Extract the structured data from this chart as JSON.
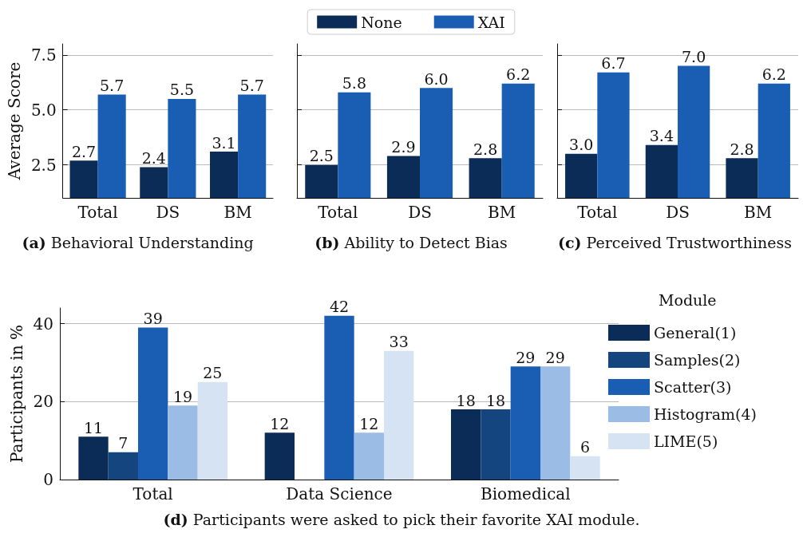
{
  "chart_data": [
    {
      "type": "bar",
      "title": "(a) Behavioral Understanding",
      "ylabel": "Average Score",
      "categories": [
        "Total",
        "DS",
        "BM"
      ],
      "series": [
        {
          "color": "#0b2c56",
          "values": [
            2.7,
            2.4,
            3.1
          ]
        },
        {
          "color": "#1a5eb4",
          "values": [
            5.7,
            5.5,
            5.7
          ]
        }
      ],
      "ylim": [
        1,
        8
      ],
      "yticks": [
        {
          "value": 2.5,
          "label": "2.5"
        },
        {
          "value": 5,
          "label": "5.0"
        },
        {
          "value": 7.5,
          "label": "7.5"
        }
      ],
      "grid": "y",
      "data_labels": true
    },
    {
      "type": "bar",
      "title": "(b) Ability to Detect Bias",
      "categories": [
        "Total",
        "DS",
        "BM"
      ],
      "series": [
        {
          "name": "None",
          "color": "#0b2c56",
          "values": [
            2.5,
            2.9,
            2.8
          ],
          "value_labels": [
            "2.5",
            "2.9",
            "2.8"
          ]
        },
        {
          "name": "XAI",
          "color": "#1a5eb4",
          "values": [
            5.8,
            6.0,
            6.2
          ],
          "value_labels": [
            "5.8",
            "6.0",
            "6.2"
          ]
        }
      ],
      "ylim": [
        1,
        8
      ],
      "yticks": [
        2.5,
        5,
        7.5
      ],
      "tick_labels": "x",
      "grid": "y",
      "legend": "top"
    },
    {
      "type": "bar",
      "title": "(c) Perceived Trustworthiness",
      "categories": [
        "Total",
        "DS",
        "BM"
      ],
      "series": [
        {
          "color": "#0b2c56",
          "values": [
            3.0,
            3.4,
            2.8
          ],
          "value_labels": [
            "3.0",
            "3.4",
            "2.8"
          ]
        },
        {
          "color": "#1a5eb4",
          "values": [
            6.7,
            7.0,
            6.2
          ],
          "value_labels": [
            "6.7",
            "7.0",
            "6.2"
          ]
        }
      ],
      "ylim": [
        1,
        8
      ],
      "yticks": [
        2.5,
        5,
        7.5
      ],
      "tick_labels": "x",
      "grid": "y"
    },
    {
      "type": "bar",
      "title": "(d) Participants were asked to pick their favorite XAI module.",
      "ylabel": "Participants in %",
      "legend_title": "Module",
      "categories": [
        "Total",
        "Data Science",
        "Biomedical"
      ],
      "series": [
        {
          "name": "General(1)",
          "color": "#0b2c56",
          "values": [
            11,
            12,
            18
          ]
        },
        {
          "name": "Samples(2)",
          "color": "#14457f",
          "values": [
            7,
            null,
            18
          ]
        },
        {
          "name": "Scatter(3)",
          "color": "#1a5eb4",
          "values": [
            39,
            42,
            29
          ]
        },
        {
          "name": "Histogram(4)",
          "color": "#9bbce4",
          "values": [
            19,
            12,
            29
          ]
        },
        {
          "name": "LIME(5)",
          "color": "#d6e3f3",
          "values": [
            25,
            33,
            6
          ]
        }
      ],
      "ylim": [
        0,
        44
      ],
      "yticks": [
        0,
        20,
        40
      ],
      "grid": "y",
      "data_labels": true,
      "legend": "right"
    }
  ]
}
